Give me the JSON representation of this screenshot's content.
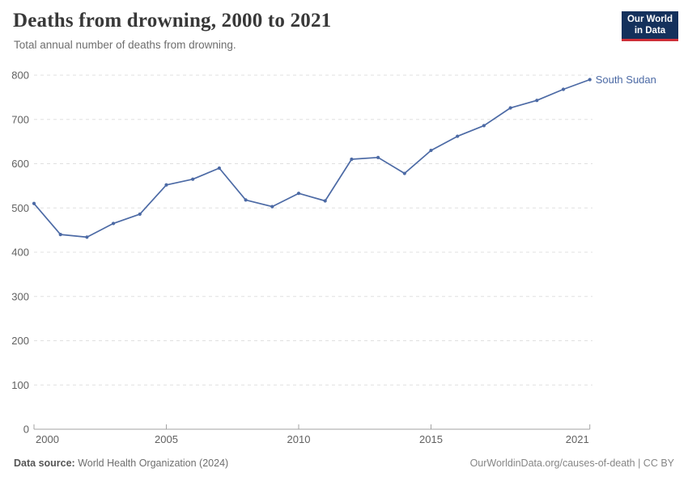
{
  "chart_data": {
    "type": "line",
    "title": "Deaths from drowning, 2000 to 2021",
    "subtitle": "Total annual number of deaths from drowning.",
    "x": [
      2000,
      2001,
      2002,
      2003,
      2004,
      2005,
      2006,
      2007,
      2008,
      2009,
      2010,
      2011,
      2012,
      2013,
      2014,
      2015,
      2016,
      2017,
      2018,
      2019,
      2020,
      2021
    ],
    "series": [
      {
        "name": "South Sudan",
        "color": "#4c6aa5",
        "values": [
          510,
          440,
          434,
          465,
          486,
          552,
          565,
          590,
          518,
          503,
          533,
          516,
          610,
          614,
          578,
          630,
          662,
          686,
          726,
          743,
          768,
          790
        ]
      }
    ],
    "xlabel": "",
    "ylabel": "",
    "ylim": [
      0,
      800
    ],
    "yticks": [
      0,
      100,
      200,
      300,
      400,
      500,
      600,
      700,
      800
    ],
    "xticks": [
      2000,
      2005,
      2010,
      2015,
      2021
    ],
    "grid": true,
    "gridline_color": "#e0e0e0",
    "axis_color": "#a3a3a3",
    "legend_position": "end-of-line-label"
  },
  "logo": {
    "line1": "Our World",
    "line2": "in Data",
    "bg_color": "#14315c",
    "accent_color": "#cf2f38"
  },
  "footer": {
    "source_label": "Data source:",
    "source_value": " World Health Organization (2024)",
    "credit": "OurWorldinData.org/causes-of-death | CC BY"
  }
}
